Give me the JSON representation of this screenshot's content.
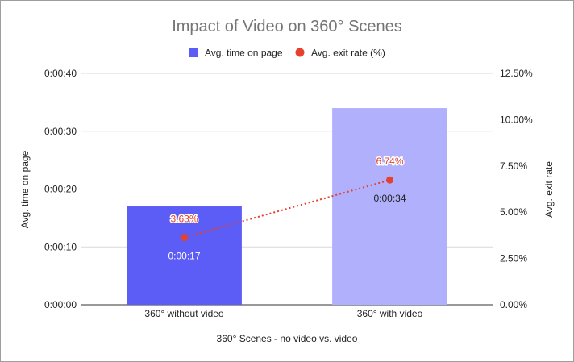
{
  "chart_data": {
    "type": "bar",
    "title": "Impact of Video on 360° Scenes",
    "xlabel": "360° Scenes - no video vs. video",
    "ylabel_left": "Avg. time on page",
    "ylabel_right": "Avg. exit rate",
    "categories": [
      "360° without video",
      "360° with video"
    ],
    "series": [
      {
        "name": "Avg. time on page",
        "type": "bar",
        "axis": "left",
        "values": [
          17,
          34
        ],
        "labels": [
          "0:00:17",
          "0:00:34"
        ],
        "color": "#5c5cf6",
        "colors": [
          "#5c5cf6",
          "#b0b0fc"
        ],
        "label_colors": [
          "#ffffff",
          "#222222"
        ]
      },
      {
        "name": "Avg. exit rate (%)",
        "type": "line",
        "axis": "right",
        "style": "dotted",
        "values": [
          3.63,
          6.74
        ],
        "labels": [
          "3.63%",
          "6.74%"
        ],
        "color": "#e5412d"
      }
    ],
    "y_left": {
      "range": [
        0,
        40
      ],
      "ticks": [
        0,
        10,
        20,
        30,
        40
      ],
      "tick_labels": [
        "0:00:00",
        "0:00:10",
        "0:00:20",
        "0:00:30",
        "0:00:40"
      ]
    },
    "y_right": {
      "range": [
        0,
        12.5
      ],
      "ticks": [
        0,
        2.5,
        5,
        7.5,
        10,
        12.5
      ],
      "tick_labels": [
        "0.00%",
        "2.50%",
        "5.00%",
        "7.50%",
        "10.00%",
        "12.50%"
      ]
    },
    "grid": true,
    "legend_position": "top"
  }
}
